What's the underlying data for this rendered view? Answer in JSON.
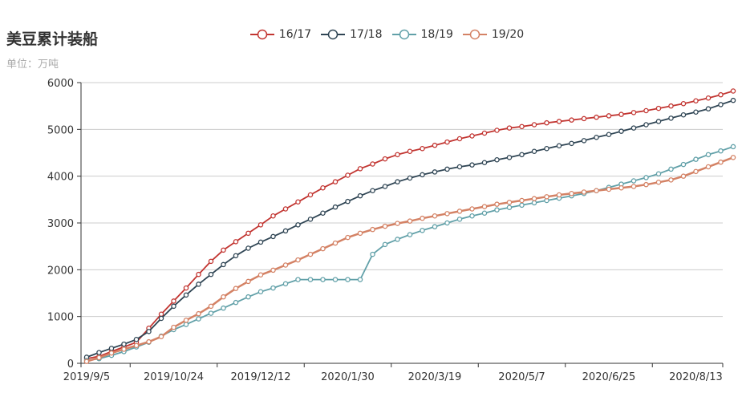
{
  "chart_data": {
    "type": "line",
    "title": "美豆累计装船",
    "subtitle": "单位：万吨",
    "x_tick_labels": [
      "2019/9/5",
      "2019/10/24",
      "2019/12/12",
      "2020/1/30",
      "2020/3/19",
      "2020/5/7",
      "2020/6/25",
      "2020/8/13"
    ],
    "x_tick_label_indices": [
      0,
      7,
      14,
      21,
      28,
      35,
      42,
      49
    ],
    "ylim": [
      0,
      6000
    ],
    "y_ticks": [
      0,
      1000,
      2000,
      3000,
      4000,
      5000,
      6000
    ],
    "grid": "horizontal",
    "legend_position": "top-center",
    "series": [
      {
        "name": "16/17",
        "color": "#c23531",
        "values": [
          100,
          150,
          250,
          350,
          450,
          750,
          1050,
          1330,
          1610,
          1900,
          2180,
          2420,
          2600,
          2780,
          2960,
          3150,
          3300,
          3450,
          3600,
          3750,
          3880,
          4020,
          4160,
          4260,
          4370,
          4460,
          4530,
          4590,
          4660,
          4730,
          4800,
          4860,
          4920,
          4980,
          5030,
          5060,
          5100,
          5140,
          5170,
          5200,
          5230,
          5260,
          5290,
          5320,
          5360,
          5400,
          5450,
          5500,
          5550,
          5610,
          5670,
          5740,
          5820
        ]
      },
      {
        "name": "17/18",
        "color": "#2f4554",
        "values": [
          130,
          230,
          320,
          410,
          510,
          680,
          960,
          1220,
          1460,
          1690,
          1900,
          2110,
          2300,
          2460,
          2590,
          2710,
          2830,
          2960,
          3080,
          3210,
          3340,
          3460,
          3580,
          3690,
          3780,
          3880,
          3960,
          4030,
          4090,
          4150,
          4200,
          4240,
          4290,
          4350,
          4400,
          4460,
          4530,
          4590,
          4650,
          4700,
          4760,
          4830,
          4890,
          4960,
          5030,
          5100,
          5170,
          5240,
          5310,
          5370,
          5440,
          5530,
          5620
        ]
      },
      {
        "name": "18/19",
        "color": "#61a0a8",
        "values": [
          60,
          100,
          170,
          250,
          350,
          450,
          580,
          720,
          830,
          950,
          1070,
          1180,
          1300,
          1420,
          1530,
          1610,
          1700,
          1790,
          1790,
          1790,
          1790,
          1790,
          1790,
          2330,
          2540,
          2650,
          2750,
          2840,
          2920,
          3000,
          3080,
          3150,
          3210,
          3280,
          3330,
          3380,
          3430,
          3480,
          3530,
          3580,
          3630,
          3690,
          3760,
          3830,
          3900,
          3970,
          4050,
          4150,
          4250,
          4360,
          4460,
          4540,
          4630
        ]
      },
      {
        "name": "19/20",
        "color": "#d48265",
        "values": [
          40,
          120,
          220,
          300,
          380,
          460,
          570,
          770,
          920,
          1060,
          1220,
          1420,
          1600,
          1750,
          1890,
          1990,
          2100,
          2210,
          2330,
          2450,
          2570,
          2690,
          2780,
          2860,
          2930,
          2990,
          3040,
          3100,
          3150,
          3200,
          3250,
          3300,
          3350,
          3400,
          3440,
          3480,
          3520,
          3560,
          3600,
          3630,
          3660,
          3690,
          3720,
          3750,
          3780,
          3820,
          3870,
          3920,
          4000,
          4100,
          4200,
          4300,
          4400
        ]
      }
    ]
  }
}
